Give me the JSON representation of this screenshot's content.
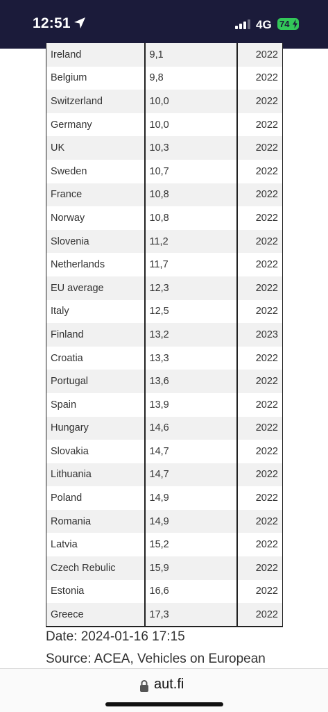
{
  "status_bar": {
    "time": "12:51",
    "network": "4G",
    "battery": "74"
  },
  "table": {
    "rows": [
      {
        "country": "Ireland",
        "value": "9,1",
        "year": "2022"
      },
      {
        "country": "Belgium",
        "value": "9,8",
        "year": "2022"
      },
      {
        "country": "Switzerland",
        "value": "10,0",
        "year": "2022"
      },
      {
        "country": "Germany",
        "value": "10,0",
        "year": "2022"
      },
      {
        "country": "UK",
        "value": "10,3",
        "year": "2022"
      },
      {
        "country": "Sweden",
        "value": "10,7",
        "year": "2022"
      },
      {
        "country": "France",
        "value": "10,8",
        "year": "2022"
      },
      {
        "country": "Norway",
        "value": "10,8",
        "year": "2022"
      },
      {
        "country": "Slovenia",
        "value": "11,2",
        "year": "2022"
      },
      {
        "country": "Netherlands",
        "value": "11,7",
        "year": "2022"
      },
      {
        "country": "EU average",
        "value": "12,3",
        "year": "2022"
      },
      {
        "country": "Italy",
        "value": "12,5",
        "year": "2022"
      },
      {
        "country": "Finland",
        "value": "13,2",
        "year": "2023"
      },
      {
        "country": "Croatia",
        "value": "13,3",
        "year": "2022"
      },
      {
        "country": "Portugal",
        "value": "13,6",
        "year": "2022"
      },
      {
        "country": "Spain",
        "value": "13,9",
        "year": "2022"
      },
      {
        "country": "Hungary",
        "value": "14,6",
        "year": "2022"
      },
      {
        "country": "Slovakia",
        "value": "14,7",
        "year": "2022"
      },
      {
        "country": "Lithuania",
        "value": "14,7",
        "year": "2022"
      },
      {
        "country": "Poland",
        "value": "14,9",
        "year": "2022"
      },
      {
        "country": "Romania",
        "value": "14,9",
        "year": "2022"
      },
      {
        "country": "Latvia",
        "value": "15,2",
        "year": "2022"
      },
      {
        "country": "Czech Rebulic",
        "value": "15,9",
        "year": "2022"
      },
      {
        "country": "Estonia",
        "value": "16,6",
        "year": "2022"
      },
      {
        "country": "Greece",
        "value": "17,3",
        "year": "2022"
      }
    ]
  },
  "captions": {
    "date": "Date: 2024-01-16 17:15",
    "source": "Source: ACEA, Vehicles on European"
  },
  "url_bar": {
    "domain": "aut.fi"
  },
  "colors": {
    "status_bar_bg": "#1b1b3a",
    "battery_green": "#33c759",
    "row_stripe": "#f1f1f1"
  },
  "icons": {
    "location": "location-arrow-icon",
    "signal": "cellular-signal-icon",
    "battery": "battery-charging-icon",
    "lock": "lock-icon"
  }
}
